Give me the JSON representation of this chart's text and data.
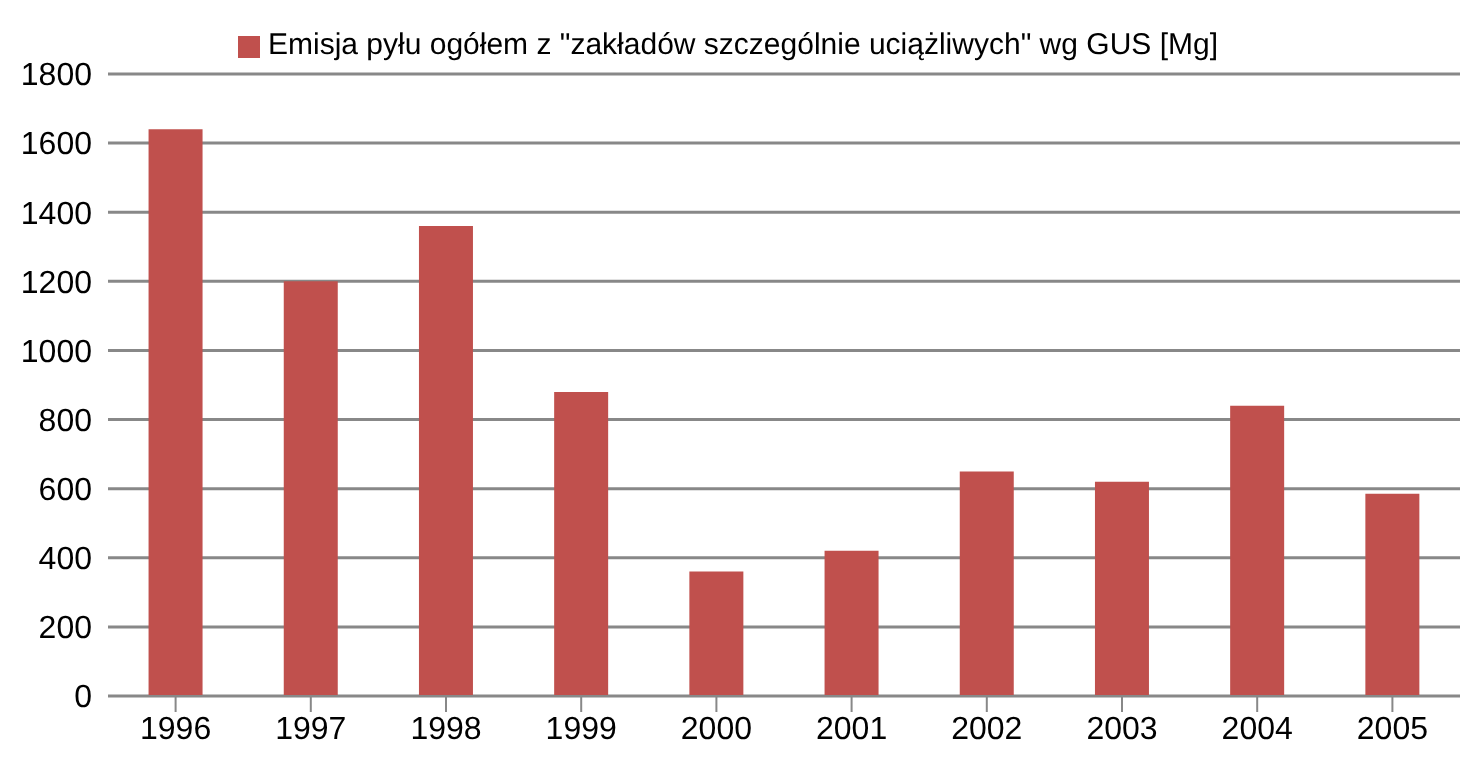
{
  "chart_data": {
    "type": "bar",
    "categories": [
      "1996",
      "1997",
      "1998",
      "1999",
      "2000",
      "2001",
      "2002",
      "2003",
      "2004",
      "2005"
    ],
    "series": [
      {
        "name": "Emisja pyłu ogółem z \"zakładów szczególnie uciążliwych\" wg GUS [Mg]",
        "color": "#c0504d",
        "values": [
          1640,
          1200,
          1360,
          880,
          360,
          420,
          650,
          620,
          840,
          585
        ]
      }
    ],
    "ylim": [
      0,
      1800
    ],
    "yticks": [
      0,
      200,
      400,
      600,
      800,
      1000,
      1200,
      1400,
      1600,
      1800
    ],
    "grid": "y",
    "legend": "top"
  }
}
